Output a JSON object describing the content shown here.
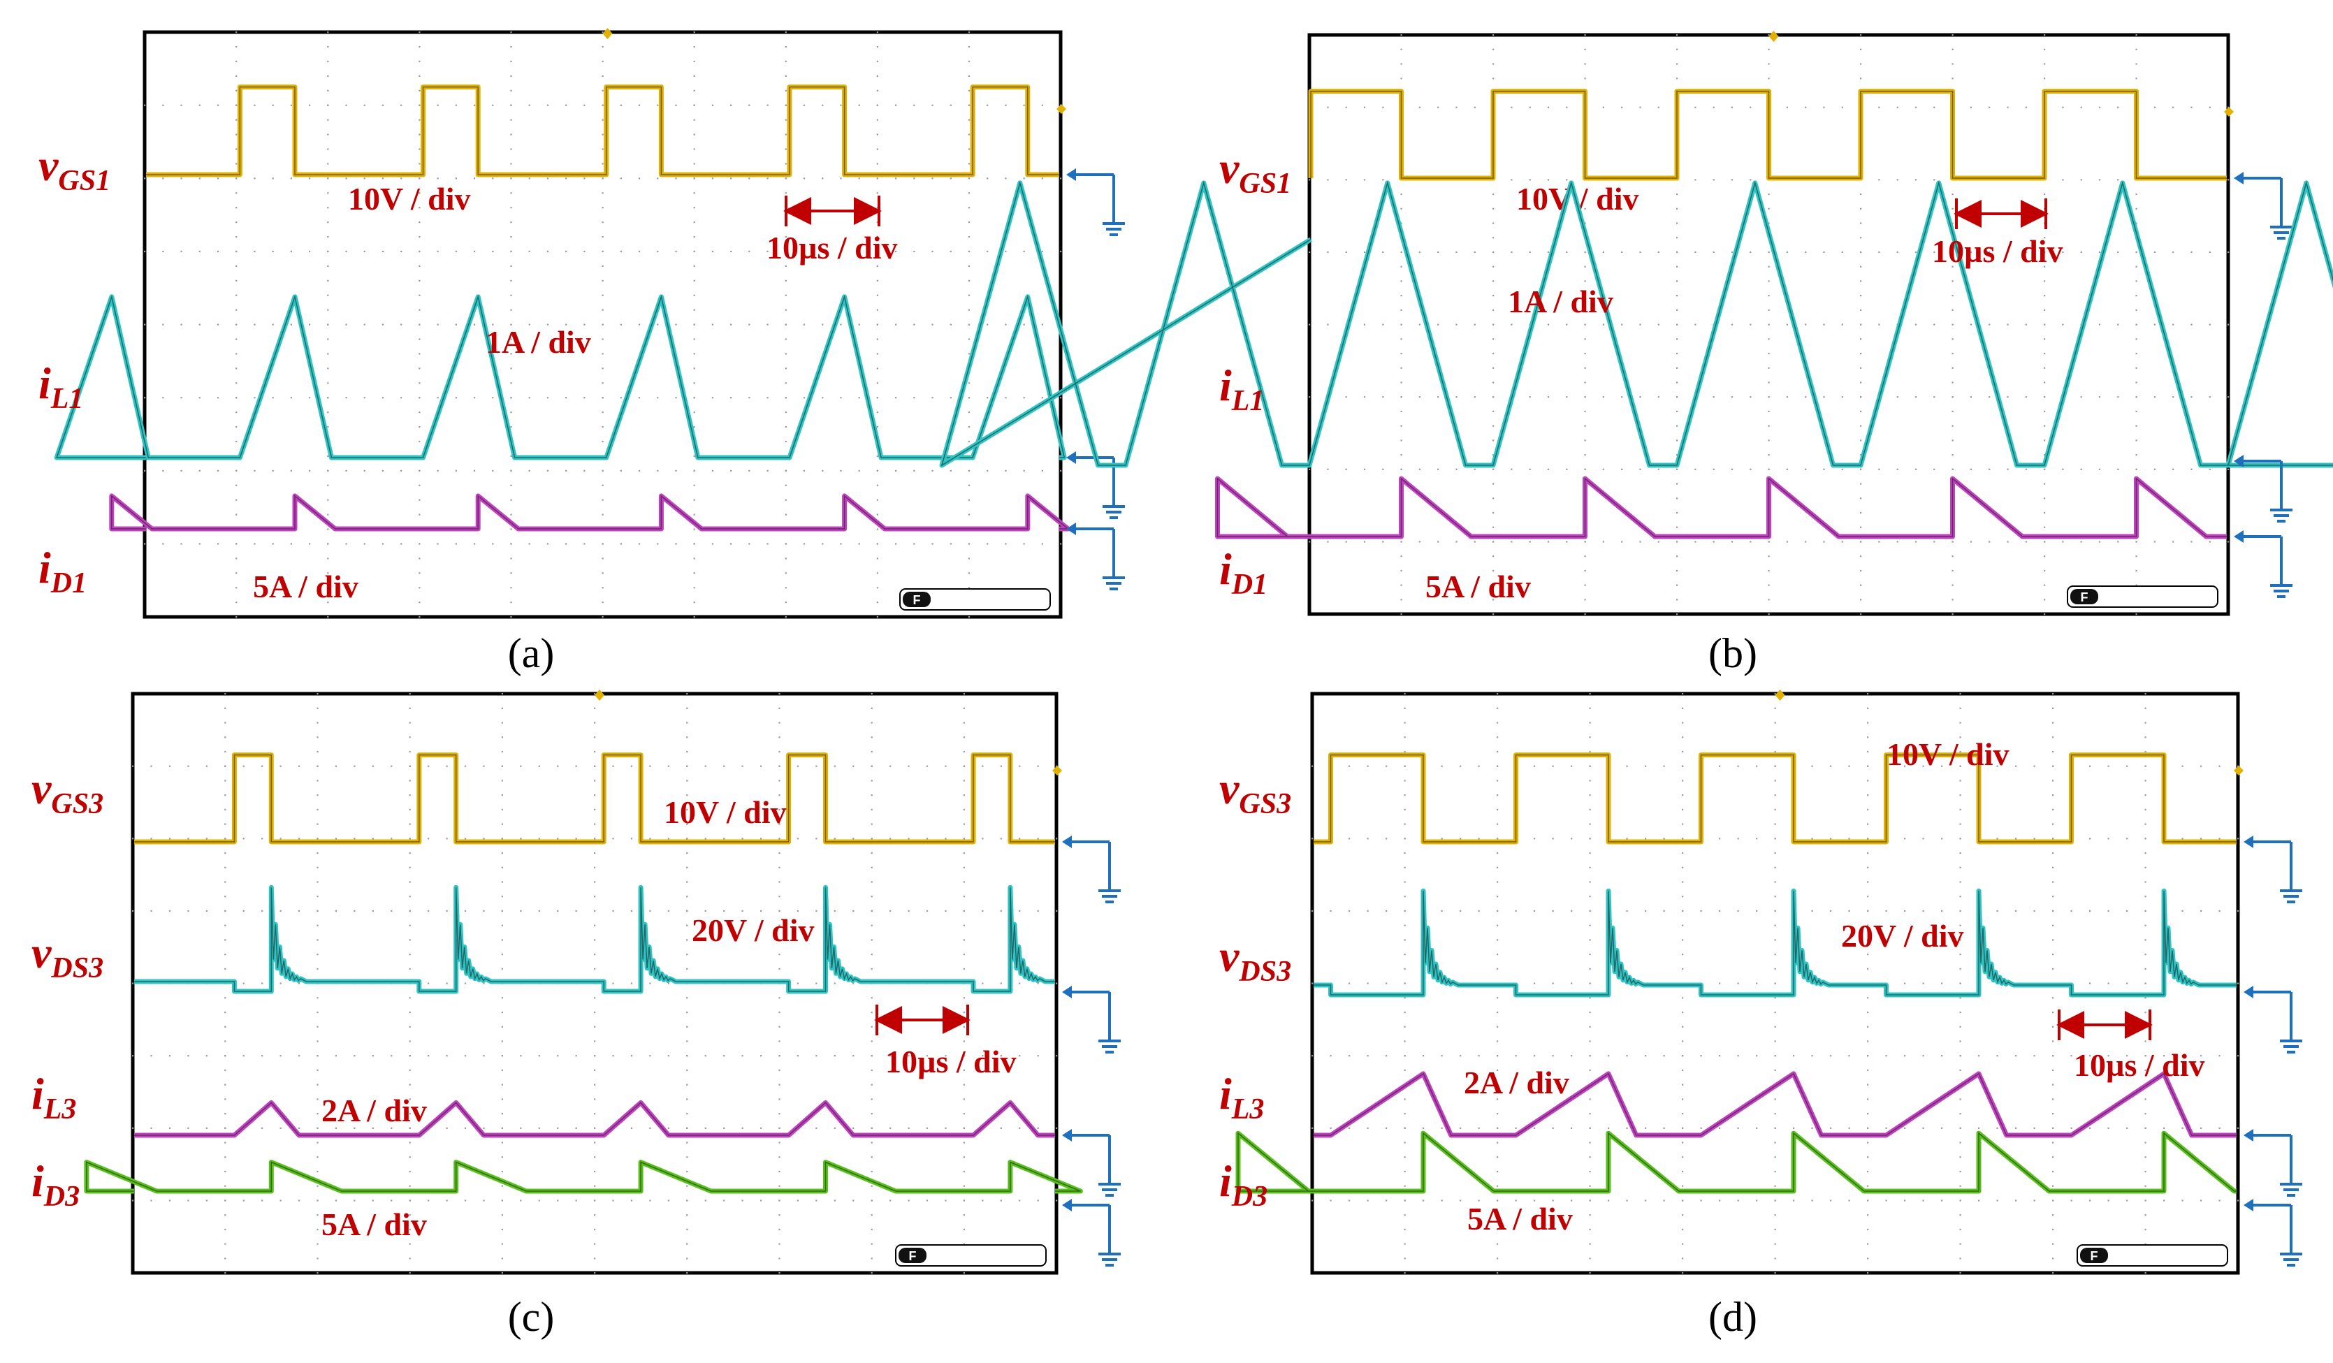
{
  "colors": {
    "vgs": "#e2b100",
    "il_cyan": "#2fc4c4",
    "id_magenta": "#c040c0",
    "id_green": "#58c01a",
    "label": "#c00000",
    "ground": "#1f6fbf"
  },
  "chart_data": [
    {
      "type": "line",
      "caption": "(a)",
      "time_scale": "10µs / div",
      "period_div": 2.0,
      "duty": 0.3,
      "channels": [
        {
          "name": "v",
          "sub": "GS1",
          "kind": "gate",
          "color": "vgs",
          "scale": "10V / div"
        },
        {
          "name": "i",
          "sub": "L1",
          "kind": "tri_dcm",
          "color": "il_cyan",
          "scale": "1A / div",
          "peak_div": 2.2,
          "ton": 0.3,
          "toff": 0.25
        },
        {
          "name": "i",
          "sub": "D1",
          "kind": "decay",
          "color": "id_magenta",
          "scale": "5A / div",
          "peak_div": 0.45
        }
      ]
    },
    {
      "type": "line",
      "caption": "(b)",
      "time_scale": "10µs / div",
      "period_div": 2.0,
      "duty": 0.5,
      "channels": [
        {
          "name": "v",
          "sub": "GS1",
          "kind": "gate",
          "color": "vgs",
          "scale": "10V / div"
        },
        {
          "name": "i",
          "sub": "L1",
          "kind": "tri_ccm",
          "color": "il_cyan",
          "scale": "1A / div",
          "peak_div": 3.9,
          "ton": 0.55,
          "toff": 0.5
        },
        {
          "name": "i",
          "sub": "D1",
          "kind": "decay",
          "color": "id_magenta",
          "scale": "5A / div",
          "peak_div": 0.8
        }
      ]
    },
    {
      "type": "line",
      "caption": "(c)",
      "time_scale": "10µs / div",
      "period_div": 2.0,
      "duty": 0.2,
      "channels": [
        {
          "name": "v",
          "sub": "GS3",
          "kind": "gate",
          "color": "vgs",
          "scale": "10V / div"
        },
        {
          "name": "v",
          "sub": "DS3",
          "kind": "vds",
          "color": "il_cyan",
          "scale": "20V / div",
          "peak_div": 1.3
        },
        {
          "name": "i",
          "sub": "L3",
          "kind": "tri_small",
          "color": "id_magenta",
          "scale": "2A / div",
          "peak_div": 0.45
        },
        {
          "name": "i",
          "sub": "D3",
          "kind": "decay",
          "color": "id_green",
          "scale": "5A / div",
          "peak_div": 0.4
        }
      ]
    },
    {
      "type": "line",
      "caption": "(d)",
      "time_scale": "10µs / div",
      "period_div": 2.0,
      "duty": 0.5,
      "channels": [
        {
          "name": "v",
          "sub": "GS3",
          "kind": "gate",
          "color": "vgs",
          "scale": "10V / div"
        },
        {
          "name": "v",
          "sub": "DS3",
          "kind": "vds",
          "color": "il_cyan",
          "scale": "20V / div",
          "peak_div": 1.3
        },
        {
          "name": "i",
          "sub": "L3",
          "kind": "tri_big",
          "color": "id_magenta",
          "scale": "2A / div",
          "peak_div": 0.85
        },
        {
          "name": "i",
          "sub": "D3",
          "kind": "decay",
          "color": "id_green",
          "scale": "5A / div",
          "peak_div": 0.8
        }
      ]
    }
  ]
}
